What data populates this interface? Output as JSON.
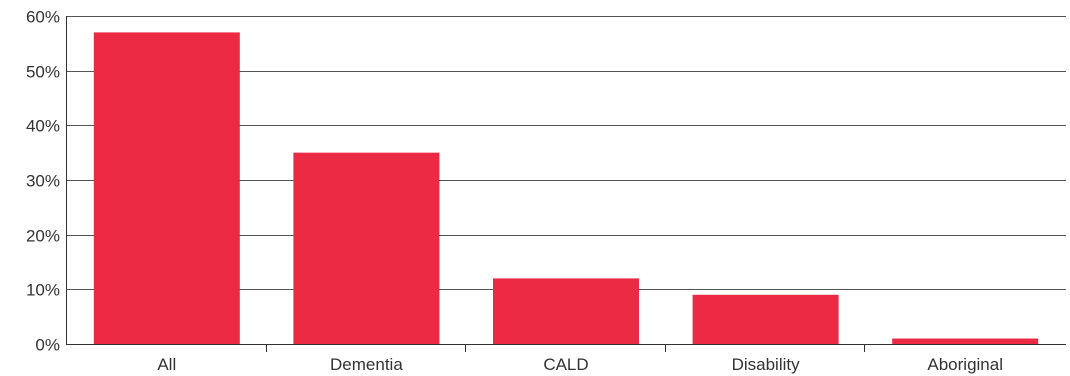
{
  "chart_data": {
    "type": "bar",
    "categories": [
      "All",
      "Dementia",
      "CALD",
      "Disability",
      "Aboriginal"
    ],
    "values": [
      57,
      35,
      12,
      9,
      1
    ],
    "ylim": [
      0,
      60
    ],
    "yticks": [
      0,
      10,
      20,
      30,
      40,
      50,
      60
    ],
    "ytick_labels": [
      "0%",
      "10%",
      "20%",
      "30%",
      "40%",
      "50%",
      "60%"
    ],
    "bar_color": "#ED2A44",
    "grid": true
  }
}
